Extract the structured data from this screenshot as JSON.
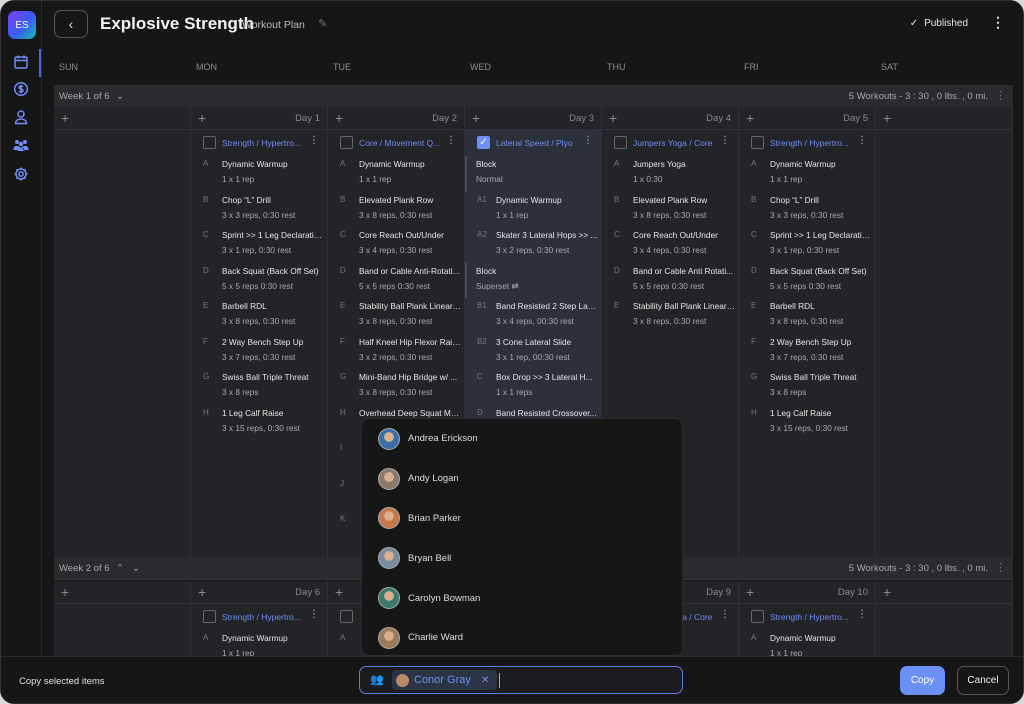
{
  "sidebar": {
    "logo": "ES",
    "icons": [
      "calendar-icon",
      "dollar-icon",
      "user-icon",
      "team-icon",
      "gear-icon"
    ]
  },
  "header": {
    "title": "Explosive Strength",
    "subtitle": "Workout Plan",
    "status": "Published"
  },
  "days_of_week": [
    "SUN",
    "MON",
    "TUE",
    "WED",
    "THU",
    "FRI",
    "SAT"
  ],
  "colors": {
    "accent": "#6e8ff5",
    "background": "#161616",
    "grid": "#232427",
    "selected_column": "#2b303b"
  },
  "weeks": [
    {
      "label": "Week 1 of 6",
      "summary": "5 Workouts - 3 : 30 ,  0 lbs. ,  0 mi.",
      "days": [
        {
          "day": ""
        },
        {
          "day": "Day 1",
          "workout": {
            "title": "Strength / Hypertro...",
            "checked": false,
            "items": [
              {
                "l": "A",
                "n": "Dynamic Warmup",
                "d": "1 x 1 rep"
              },
              {
                "l": "B",
                "n": "Chop “L” Drill",
                "d": "3 x 3 reps,  0:30 rest"
              },
              {
                "l": "C",
                "n": "Sprint >> 1 Leg Declarations",
                "d": "3 x 1 rep,  0:30 rest"
              },
              {
                "l": "D",
                "n": "Back Squat (Back Off Set)",
                "d": "5 x 5 reps  0:30 rest"
              },
              {
                "l": "E",
                "n": "Barbell RDL",
                "d": "3 x 8 reps,  0:30 rest"
              },
              {
                "l": "F",
                "n": "2 Way Bench Step Up",
                "d": "3 x 7 reps,  0:30 rest"
              },
              {
                "l": "G",
                "n": "Swiss Ball Triple Threat",
                "d": "3 x 8 reps"
              },
              {
                "l": "H",
                "n": "1 Leg Calf Raise",
                "d": "3 x 15 reps,  0:30 rest"
              }
            ]
          }
        },
        {
          "day": "Day 2",
          "workout": {
            "title": "Core / Movement Q...",
            "checked": false,
            "items": [
              {
                "l": "A",
                "n": "Dynamic Warmup",
                "d": "1 x 1 rep"
              },
              {
                "l": "B",
                "n": "Elevated Plank Row",
                "d": "3 x 8 reps,  0:30 rest"
              },
              {
                "l": "C",
                "n": "Core Reach Out/Under",
                "d": "3 x 4 reps,  0:30 rest"
              },
              {
                "l": "D",
                "n": "Band or Cable Anti-Rotati...",
                "d": "5 x 5 reps  0:30 rest"
              },
              {
                "l": "E",
                "n": "Stability Ball Plank Linear ...",
                "d": "3 x 8 reps,  0:30 rest"
              },
              {
                "l": "F",
                "n": "Half Kneel Hip Flexor Rais...",
                "d": "3 x 2 reps,  0:30 rest"
              },
              {
                "l": "G",
                "n": "Mini-Band Hip Bridge w/ ...",
                "d": "3 x 8 reps,  0:30 rest"
              },
              {
                "l": "H",
                "n": "Overhead Deep Squat Mo...",
                "d": ""
              },
              {
                "l": "I",
                "n": "",
                "d": ""
              },
              {
                "l": "J",
                "n": "",
                "d": ""
              },
              {
                "l": "K",
                "n": "",
                "d": ""
              }
            ]
          }
        },
        {
          "day": "Day 3",
          "workout": {
            "title": "Lateral Speed / Plyo",
            "checked": true,
            "items": [
              {
                "block": "Block",
                "sub": "Normal"
              },
              {
                "l": "A1",
                "n": "Dynamic Warmup",
                "d": "1 x 1 rep"
              },
              {
                "l": "A2",
                "n": "Skater 3 Lateral Hops >> ...",
                "d": "3 x 2 reps,  0:30 rest"
              },
              {
                "block": "Block",
                "sub": "Superset ⇄"
              },
              {
                "l": "B1",
                "n": "Band Resisted 2 Step Late...",
                "d": "3 x 4 reps,  00:30 rest"
              },
              {
                "l": "B2",
                "n": "3 Cone Lateral Slide",
                "d": "3 x 1 rep,  00:30 rest"
              },
              {
                "l": "C",
                "n": "Box Drop >> 3 Lateral H...",
                "d": "1 x 1 reps"
              },
              {
                "l": "D",
                "n": "Band Resisted Crossover...",
                "d": ""
              }
            ]
          }
        },
        {
          "day": "Day 4",
          "workout": {
            "title": "Jumpers Yoga / Core",
            "checked": false,
            "items": [
              {
                "l": "A",
                "n": "Jumpers Yoga",
                "d": "1 x  0:30"
              },
              {
                "l": "B",
                "n": "Elevated Plank Row",
                "d": "3 x 8 reps,  0:30 rest"
              },
              {
                "l": "C",
                "n": "Core Reach Out/Under",
                "d": "3 x 4 reps,  0:30 rest"
              },
              {
                "l": "D",
                "n": "Band or Cable Anti Rotati...",
                "d": "5 x 5 reps  0:30 rest"
              },
              {
                "l": "E",
                "n": "Stability Ball Plank Linear ...",
                "d": "3 x 8 reps,  0:30 rest"
              }
            ]
          }
        },
        {
          "day": "Day 5",
          "workout": {
            "title": "Strength / Hypertro...",
            "checked": false,
            "items": [
              {
                "l": "A",
                "n": "Dynamic Warmup",
                "d": "1 x 1 rep"
              },
              {
                "l": "B",
                "n": "Chop “L” Drill",
                "d": "3 x 3 reps,  0:30 rest"
              },
              {
                "l": "C",
                "n": "Sprint >> 1 Leg Declarations",
                "d": "3 x 1 rep,  0:30 rest"
              },
              {
                "l": "D",
                "n": "Back Squat (Back Off Set)",
                "d": "5 x 5 reps  0:30 rest"
              },
              {
                "l": "E",
                "n": "Barbell RDL",
                "d": "3 x 8 reps,  0:30 rest"
              },
              {
                "l": "F",
                "n": "2 Way Bench Step Up",
                "d": "3 x 7 reps,  0:30 rest"
              },
              {
                "l": "G",
                "n": "Swiss Ball Triple Threat",
                "d": "3 x 8 reps"
              },
              {
                "l": "H",
                "n": "1 Leg Calf Raise",
                "d": "3 x 15 reps,  0:30 rest"
              }
            ]
          }
        },
        {
          "day": ""
        }
      ]
    },
    {
      "label": "Week 2 of 6",
      "summary": "5 Workouts - 3 : 30 ,  0 lbs. ,  0 mi.",
      "days": [
        {
          "day": ""
        },
        {
          "day": "Day 6",
          "workout": {
            "title": "Strength / Hypertro...",
            "checked": false,
            "items": [
              {
                "l": "A",
                "n": "Dynamic Warmup",
                "d": "1 x 1 rep"
              }
            ]
          }
        },
        {
          "day": "",
          "workout": {
            "title": "",
            "checked": false,
            "items": [
              {
                "l": "A",
                "n": "",
                "d": ""
              }
            ]
          }
        },
        {
          "day": ""
        },
        {
          "day": "Day 9",
          "workout": {
            "title": "Jumpers Yoga / Core",
            "checked": false,
            "items": []
          }
        },
        {
          "day": "Day 10",
          "workout": {
            "title": "Strength / Hypertro...",
            "checked": false,
            "items": [
              {
                "l": "A",
                "n": "Dynamic Warmup",
                "d": "1 x 1 rep"
              }
            ]
          }
        },
        {
          "day": ""
        }
      ]
    }
  ],
  "client_dropdown": {
    "people": [
      "Andrea Erickson",
      "Andy Logan",
      "Brian Parker",
      "Bryan Bell",
      "Carolyn Bowman",
      "Charlie Ward"
    ]
  },
  "footer": {
    "label": "Copy selected items",
    "selected_client": "Conor Gray",
    "copy": "Copy",
    "cancel": "Cancel"
  }
}
